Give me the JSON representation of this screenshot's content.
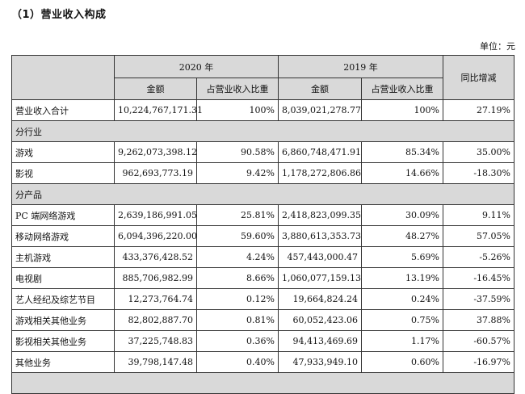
{
  "title": "（1）营业收入构成",
  "unit_label": "单位：元",
  "headers": {
    "year_2020": "2020 年",
    "year_2019": "2019 年",
    "amount": "金额",
    "ratio": "占营业收入比重",
    "yoy": "同比增减"
  },
  "total": {
    "label": "营业收入合计",
    "amt_2020": "10,224,767,171.31",
    "pct_2020": "100%",
    "amt_2019": "8,039,021,278.77",
    "pct_2019": "100%",
    "yoy": "27.19%"
  },
  "sections": {
    "industry": "分行业",
    "product": "分产品"
  },
  "industry_rows": [
    {
      "label": "游戏",
      "amt_2020": "9,262,073,398.12",
      "pct_2020": "90.58%",
      "amt_2019": "6,860,748,471.91",
      "pct_2019": "85.34%",
      "yoy": "35.00%"
    },
    {
      "label": "影视",
      "amt_2020": "962,693,773.19",
      "pct_2020": "9.42%",
      "amt_2019": "1,178,272,806.86",
      "pct_2019": "14.66%",
      "yoy": "-18.30%"
    }
  ],
  "product_rows": [
    {
      "label": "PC 端网络游戏",
      "amt_2020": "2,639,186,991.05",
      "pct_2020": "25.81%",
      "amt_2019": "2,418,823,099.35",
      "pct_2019": "30.09%",
      "yoy": "9.11%"
    },
    {
      "label": "移动网络游戏",
      "amt_2020": "6,094,396,220.00",
      "pct_2020": "59.60%",
      "amt_2019": "3,880,613,353.73",
      "pct_2019": "48.27%",
      "yoy": "57.05%"
    },
    {
      "label": "主机游戏",
      "amt_2020": "433,376,428.52",
      "pct_2020": "4.24%",
      "amt_2019": "457,443,000.47",
      "pct_2019": "5.69%",
      "yoy": "-5.26%"
    },
    {
      "label": "电视剧",
      "amt_2020": "885,706,982.99",
      "pct_2020": "8.66%",
      "amt_2019": "1,060,077,159.13",
      "pct_2019": "13.19%",
      "yoy": "-16.45%"
    },
    {
      "label": "艺人经纪及综艺节目",
      "amt_2020": "12,273,764.74",
      "pct_2020": "0.12%",
      "amt_2019": "19,664,824.24",
      "pct_2019": "0.24%",
      "yoy": "-37.59%"
    },
    {
      "label": "游戏相关其他业务",
      "amt_2020": "82,802,887.70",
      "pct_2020": "0.81%",
      "amt_2019": "60,052,423.06",
      "pct_2019": "0.75%",
      "yoy": "37.88%"
    },
    {
      "label": "影视相关其他业务",
      "amt_2020": "37,225,748.83",
      "pct_2020": "0.36%",
      "amt_2019": "94,413,469.69",
      "pct_2019": "1.17%",
      "yoy": "-60.57%"
    },
    {
      "label": "其他业务",
      "amt_2020": "39,798,147.48",
      "pct_2020": "0.40%",
      "amt_2019": "47,933,949.10",
      "pct_2019": "0.60%",
      "yoy": "-16.97%"
    }
  ]
}
